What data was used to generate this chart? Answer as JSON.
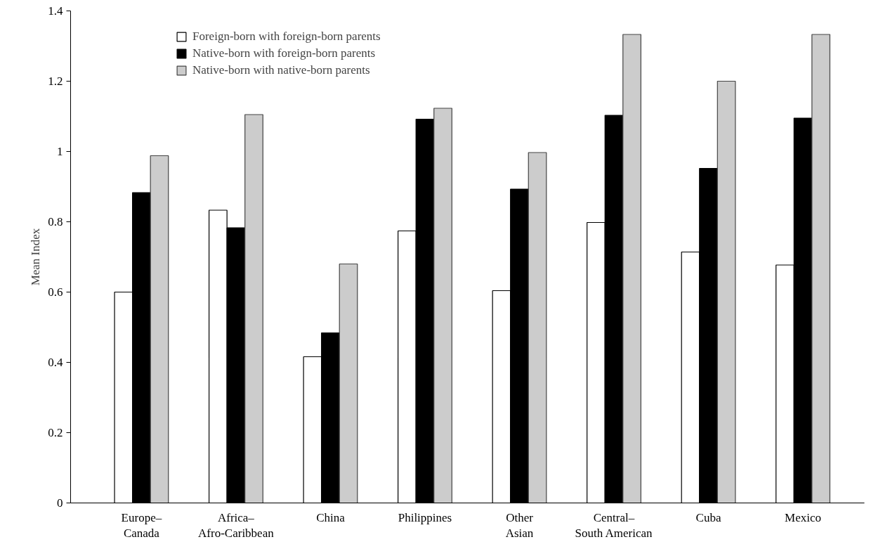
{
  "chart_data": {
    "type": "bar",
    "ylabel": "Mean Index",
    "categories": [
      "Europe–\nCanada",
      "Africa–\nAfro-Caribbean",
      "China",
      "Philippines",
      "Other\nAsian",
      "Central–\nSouth American",
      "Cuba",
      "Mexico"
    ],
    "series": [
      {
        "name": "Foreign-born with foreign-born parents",
        "color": "#ffffff",
        "values": [
          0.6,
          0.833,
          0.416,
          0.774,
          0.604,
          0.798,
          0.714,
          0.677
        ]
      },
      {
        "name": "Native-born with foreign-born parents",
        "color": "#000000",
        "values": [
          0.883,
          0.783,
          0.484,
          1.092,
          0.893,
          1.103,
          0.952,
          1.095
        ]
      },
      {
        "name": "Native-born with native-born parents",
        "color": "#cccccc",
        "values": [
          0.988,
          1.105,
          0.68,
          1.123,
          0.997,
          1.333,
          1.2,
          1.333
        ]
      }
    ],
    "ylim": [
      0,
      1.4
    ],
    "yticks": [
      0,
      0.2,
      0.4,
      0.6,
      0.8,
      1,
      1.2,
      1.4
    ],
    "grid": false,
    "legend": "top"
  }
}
